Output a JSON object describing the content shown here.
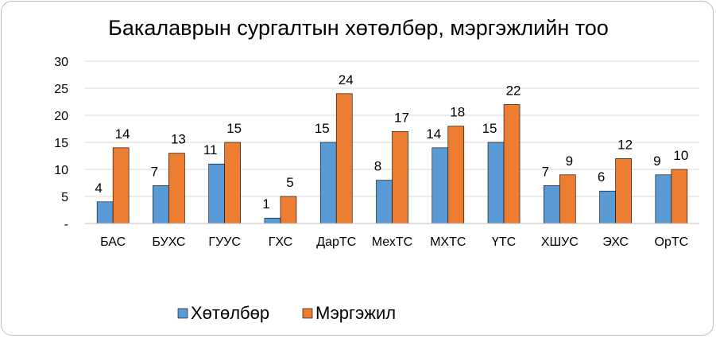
{
  "chart_data": {
    "type": "bar",
    "title": "Бакалаврын сургалтын хөтөлбөр, мэргэжлийн тоо",
    "xlabel": "",
    "ylabel": "",
    "ylim": [
      0,
      30
    ],
    "yticks": [
      {
        "value": 0,
        "label": "-"
      },
      {
        "value": 5,
        "label": "5"
      },
      {
        "value": 10,
        "label": "10"
      },
      {
        "value": 15,
        "label": "15"
      },
      {
        "value": 20,
        "label": "20"
      },
      {
        "value": 25,
        "label": "25"
      },
      {
        "value": 30,
        "label": "30"
      }
    ],
    "grid": true,
    "legend_position": "bottom",
    "categories": [
      "БАС",
      "БУХС",
      "ГУУС",
      "ГХС",
      "ДарТС",
      "МехТС",
      "МХТС",
      "ҮТС",
      "ХШУС",
      "ЭХС",
      "ОрТС"
    ],
    "series": [
      {
        "name": "Хөтөлбөр",
        "color": "#5b9bd5",
        "values": [
          4,
          7,
          11,
          1,
          15,
          8,
          14,
          15,
          7,
          6,
          9
        ]
      },
      {
        "name": "Мэргэжил",
        "color": "#ed7d31",
        "values": [
          14,
          13,
          15,
          5,
          24,
          17,
          18,
          22,
          9,
          12,
          10
        ]
      }
    ]
  }
}
